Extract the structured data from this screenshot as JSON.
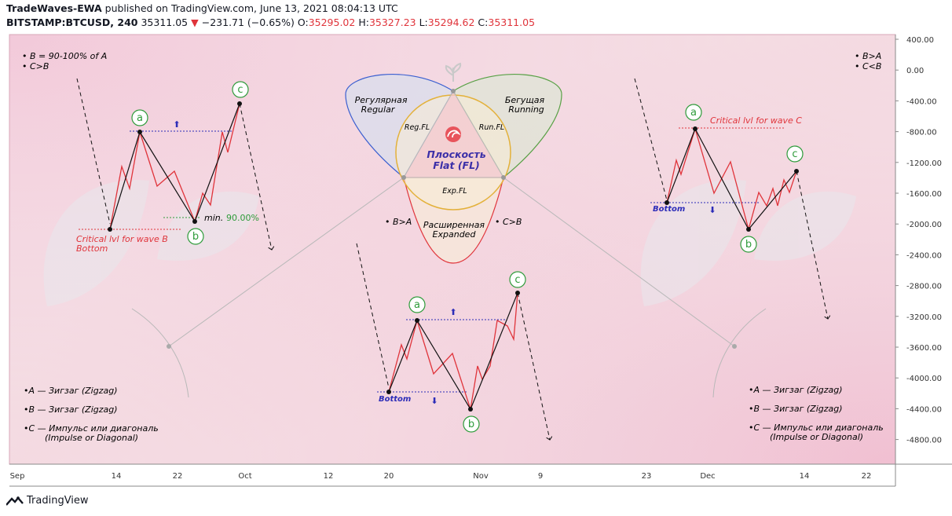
{
  "header": {
    "author": "TradeWaves-EWA",
    "published": "published on TradingView.com, June 13, 2021 08:04:13 UTC",
    "symbol": "BITSTAMP:BTCUSD, 240",
    "last": "35311.05",
    "change": "−231.71 (−0.65%)",
    "o_label": "O:",
    "o": "35295.02",
    "h_label": "H:",
    "h": "35327.23",
    "l_label": "L:",
    "l": "35294.62",
    "c_label": "C:",
    "c": "35311.05"
  },
  "footer": {
    "brand": "TradingView"
  },
  "colors": {
    "red": "#e0343b",
    "blue": "#2d2db8",
    "green": "#2e9b3a",
    "axis": "#444444"
  },
  "chart_data": {
    "type": "line",
    "y_ticks": [
      "400.00",
      "0.00",
      "-400.00",
      "-800.00",
      "-1200.00",
      "-1600.00",
      "-2000.00",
      "-2400.00",
      "-2800.00",
      "-3200.00",
      "-3600.00",
      "-4000.00",
      "-4400.00",
      "-4800.00"
    ],
    "x_ticks": [
      "Sep",
      "14",
      "22",
      "Oct",
      "12",
      "20",
      "Nov",
      "9",
      "23",
      "Dec",
      "14",
      "22"
    ],
    "left": {
      "notes": [
        "• B = 90-100% of A",
        "• C>B"
      ],
      "wave_labels": [
        "a",
        "b",
        "c"
      ],
      "min_label": "min.",
      "min_value": "90.00%",
      "critical": "Critical lvl for wave B",
      "bottom": "Bottom",
      "legend": [
        "•A — Зигзаг (Zigzag)",
        "•B — Зигзаг (Zigzag)",
        "•C — Импульс или диагональ",
        "(Impulse or Diagonal)"
      ]
    },
    "center": {
      "regular": [
        "Регулярная",
        "Regular"
      ],
      "running": [
        "Бегущая",
        "Running"
      ],
      "expanded": [
        "Расширенная",
        "Expanded"
      ],
      "flat": [
        "Плоскость",
        "Flat (FL)"
      ],
      "reg_fl": "Reg.FL",
      "run_fl": "Run.FL",
      "exp_fl": "Exp.FL",
      "b_gt_a": "• B>A",
      "c_gt_b": "• C>B",
      "wave_labels": [
        "a",
        "b",
        "c"
      ],
      "bottom": "Bottom"
    },
    "right": {
      "notes": [
        "• B>A",
        "• C<B"
      ],
      "wave_labels": [
        "a",
        "b",
        "c"
      ],
      "critical": "Critical lvl for wave C",
      "bottom": "Bottom",
      "legend": [
        "•A — Зигзаг (Zigzag)",
        "•B — Зигзаг (Zigzag)",
        "•C — Импульс или диагональ",
        "(Impulse or Diagonal)"
      ]
    }
  }
}
